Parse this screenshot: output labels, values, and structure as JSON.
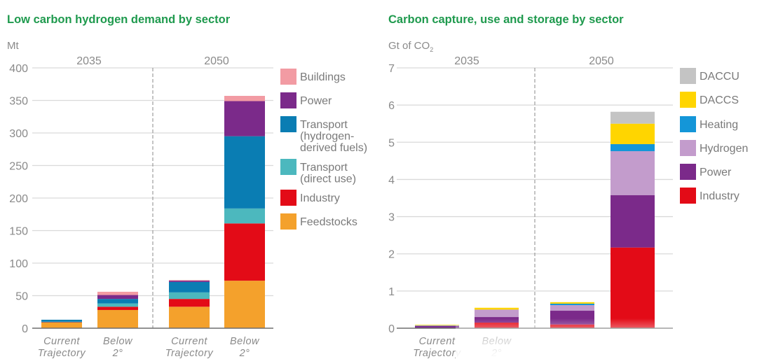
{
  "chart_data": [
    {
      "type": "bar",
      "stacked": true,
      "title": "Low carbon hydrogen demand by sector",
      "ylabel": "Mt",
      "xlabel": "",
      "ylim": [
        0,
        400
      ],
      "yticks": [
        0,
        50,
        100,
        150,
        200,
        250,
        300,
        350,
        400
      ],
      "grid": true,
      "legend_position": "right",
      "groups": [
        "2035",
        "2050"
      ],
      "categories": [
        {
          "group": "2035",
          "label": [
            "Current",
            "Trajectory"
          ]
        },
        {
          "group": "2035",
          "label": [
            "Below",
            "2°"
          ]
        },
        {
          "group": "2050",
          "label": [
            "Current",
            "Trajectory"
          ]
        },
        {
          "group": "2050",
          "label": [
            "Below",
            "2°"
          ]
        }
      ],
      "series": [
        {
          "name": "Feedstocks",
          "color": "#f4a12c",
          "values": [
            9,
            28,
            33,
            73
          ]
        },
        {
          "name": "Industry",
          "color": "#e30b17",
          "values": [
            0.5,
            5,
            12,
            88
          ]
        },
        {
          "name": "Transport (direct use)",
          "color": "#4cb8be",
          "values": [
            0.5,
            5,
            10,
            23
          ]
        },
        {
          "name": "Transport (hydrogen-derived fuels)",
          "color": "#0a7db3",
          "values": [
            3,
            7,
            16,
            111
          ]
        },
        {
          "name": "Power",
          "color": "#7b2a8a",
          "values": [
            0,
            6,
            2,
            54
          ]
        },
        {
          "name": "Buildings",
          "color": "#f29ba3",
          "values": [
            0,
            5,
            1,
            8
          ]
        }
      ],
      "legend": [
        {
          "name": "Buildings",
          "lines": [
            "Buildings"
          ],
          "color": "#f29ba3"
        },
        {
          "name": "Power",
          "lines": [
            "Power"
          ],
          "color": "#7b2a8a"
        },
        {
          "name": "Transport (hydrogen-derived fuels)",
          "lines": [
            "Transport",
            "(hydrogen-",
            "derived fuels)"
          ],
          "color": "#0a7db3"
        },
        {
          "name": "Transport (direct use)",
          "lines": [
            "Transport",
            "(direct use)"
          ],
          "color": "#4cb8be"
        },
        {
          "name": "Industry",
          "lines": [
            "Industry"
          ],
          "color": "#e30b17"
        },
        {
          "name": "Feedstocks",
          "lines": [
            "Feedstocks"
          ],
          "color": "#f4a12c"
        }
      ]
    },
    {
      "type": "bar",
      "stacked": true,
      "title": "Carbon capture, use and storage by sector",
      "ylabel": "Gt of CO",
      "ylabel_subscript": "2",
      "xlabel": "",
      "ylim": [
        0,
        7
      ],
      "yticks": [
        0,
        1,
        2,
        3,
        4,
        5,
        6,
        7
      ],
      "grid": true,
      "legend_position": "right",
      "groups": [
        "2035",
        "2050"
      ],
      "categories": [
        {
          "group": "2035",
          "label": [
            "Current",
            "Trajectory"
          ]
        },
        {
          "group": "2035",
          "label": [
            "Below",
            "2°"
          ]
        },
        {
          "group": "2050",
          "label": []
        },
        {
          "group": "2050",
          "label": []
        }
      ],
      "series": [
        {
          "name": "Industry",
          "color": "#e30b17",
          "values": [
            0.01,
            0.15,
            0.1,
            2.17
          ]
        },
        {
          "name": "Power",
          "color": "#7b2a8a",
          "values": [
            0.05,
            0.15,
            0.37,
            1.41
          ]
        },
        {
          "name": "Hydrogen",
          "color": "#c39ccc",
          "values": [
            0.02,
            0.2,
            0.15,
            1.18
          ]
        },
        {
          "name": "Heating",
          "color": "#1496d8",
          "values": [
            0.005,
            0.0,
            0.04,
            0.19
          ]
        },
        {
          "name": "DACCS",
          "color": "#ffd500",
          "values": [
            0.005,
            0.05,
            0.04,
            0.55
          ]
        },
        {
          "name": "DACCU",
          "color": "#c4c4c4",
          "values": [
            0,
            0,
            0,
            0.32
          ]
        }
      ],
      "legend": [
        {
          "name": "DACCU",
          "lines": [
            "DACCU"
          ],
          "color": "#c4c4c4"
        },
        {
          "name": "DACCS",
          "lines": [
            "DACCS"
          ],
          "color": "#ffd500"
        },
        {
          "name": "Heating",
          "lines": [
            "Heating"
          ],
          "color": "#1496d8"
        },
        {
          "name": "Hydrogen",
          "lines": [
            "Hydrogen"
          ],
          "color": "#c39ccc"
        },
        {
          "name": "Power",
          "lines": [
            "Power"
          ],
          "color": "#7b2a8a"
        },
        {
          "name": "Industry",
          "lines": [
            "Industry"
          ],
          "color": "#e30b17"
        }
      ]
    }
  ]
}
